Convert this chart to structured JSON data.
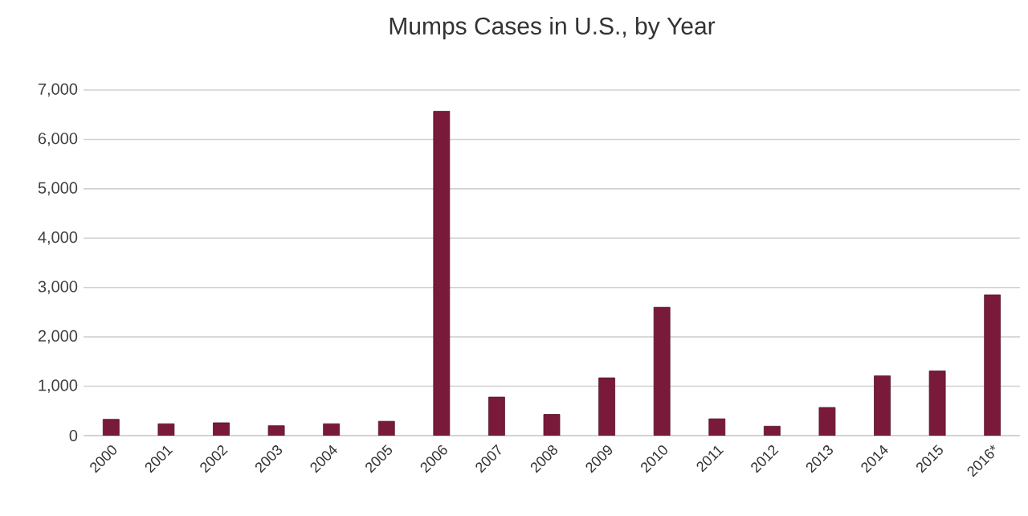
{
  "chart_data": {
    "type": "bar",
    "title": "Mumps Cases in U.S., by Year",
    "categories": [
      "2000",
      "2001",
      "2002",
      "2003",
      "2004",
      "2005",
      "2006",
      "2007",
      "2008",
      "2009",
      "2010",
      "2011",
      "2012",
      "2013",
      "2014",
      "2015",
      "2016*"
    ],
    "values": [
      330,
      240,
      260,
      200,
      240,
      290,
      6570,
      780,
      430,
      1170,
      2600,
      340,
      190,
      570,
      1210,
      1310,
      2850
    ],
    "color": "#7a1a3a",
    "ylim": [
      0,
      7000
    ],
    "yticks": [
      {
        "value": 0,
        "label": "0"
      },
      {
        "value": 1000,
        "label": "1,000"
      },
      {
        "value": 2000,
        "label": "2,000"
      },
      {
        "value": 3000,
        "label": "3,000"
      },
      {
        "value": 4000,
        "label": "4,000"
      },
      {
        "value": 5000,
        "label": "5,000"
      },
      {
        "value": 6000,
        "label": "6,000"
      },
      {
        "value": 7000,
        "label": "7,000"
      }
    ],
    "grid": "y"
  }
}
